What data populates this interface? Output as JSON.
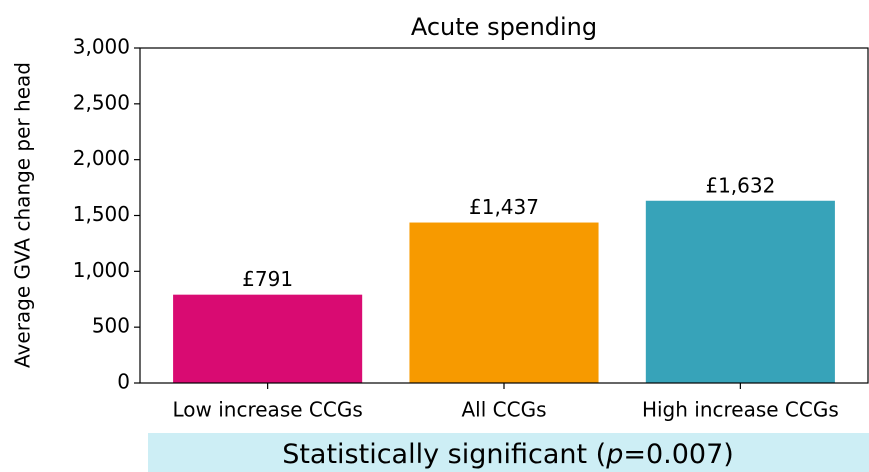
{
  "chart_data": {
    "type": "bar",
    "title": "Acute spending",
    "y_label": "Average GVA change per head",
    "categories": [
      "Low increase CCGs",
      "All CCGs",
      "High increase CCGs"
    ],
    "values": [
      791,
      1437,
      1632
    ],
    "value_labels": [
      "£791",
      "£1,437",
      "£1,632"
    ],
    "colors": [
      "#d90b72",
      "#f79a00",
      "#37a3b9"
    ],
    "ylim": [
      0,
      3000
    ],
    "yticks": [
      0,
      500,
      {
        "value": 1000,
        "label": "1,000"
      },
      {
        "value": 1500,
        "label": "1,500"
      },
      {
        "value": 2000,
        "label": "2,000"
      },
      {
        "value": 2500,
        "label": "2,500"
      },
      {
        "value": 3000,
        "label": "3,000"
      }
    ],
    "annotation": [
      "Statistically significant (",
      "p",
      "=0.007)"
    ]
  }
}
